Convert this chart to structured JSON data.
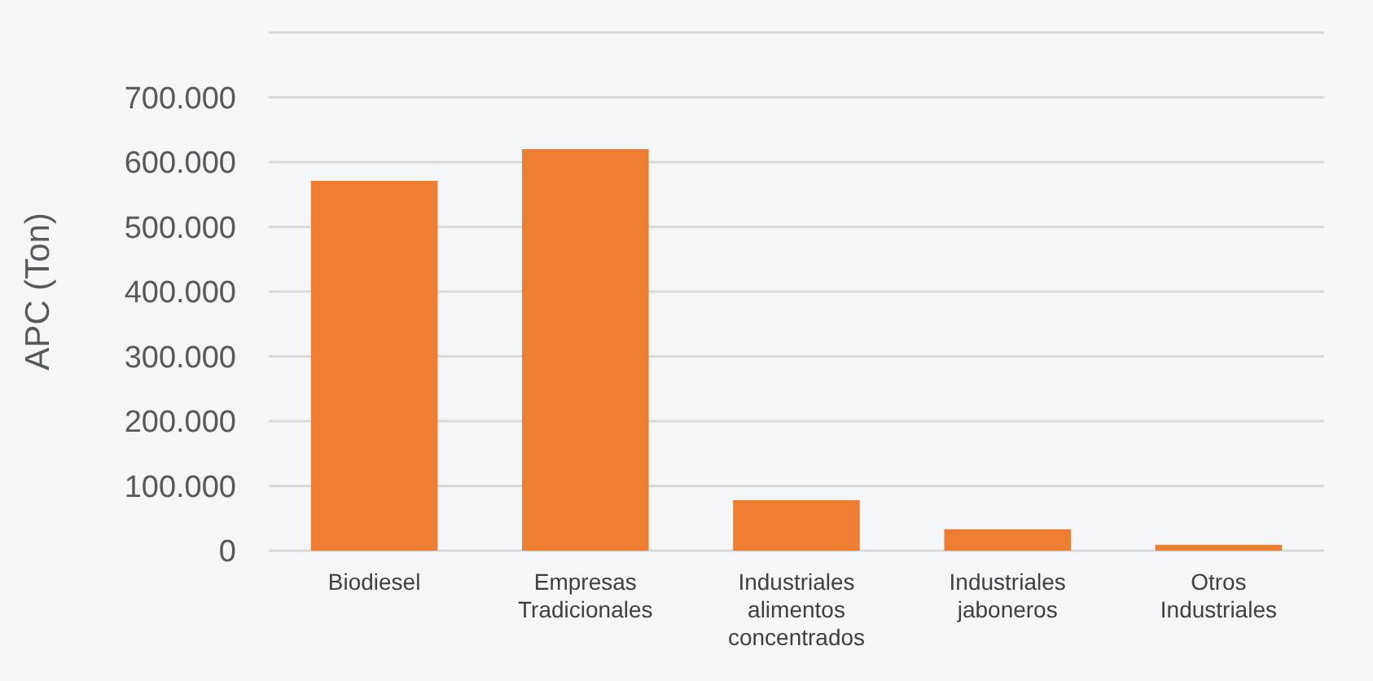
{
  "chart_data": {
    "type": "bar",
    "ylabel": "APC (Ton)",
    "categories": [
      "Biodiesel",
      "Empresas Tradicionales",
      "Industriales alimentos concentrados",
      "Industriales jaboneros",
      "Otros Industriales"
    ],
    "values": [
      571000,
      620000,
      78000,
      33000,
      9000
    ],
    "color": "#ed7d31",
    "ylim": [
      0,
      800000
    ],
    "yticks": [
      {
        "value": 0,
        "label": "0"
      },
      {
        "value": 100000,
        "label": "100.000"
      },
      {
        "value": 200000,
        "label": "200.000"
      },
      {
        "value": 300000,
        "label": "300.000"
      },
      {
        "value": 400000,
        "label": "400.000"
      },
      {
        "value": 500000,
        "label": "500.000"
      },
      {
        "value": 600000,
        "label": "600.000"
      },
      {
        "value": 700000,
        "label": "700.000"
      },
      {
        "value": 800000,
        "label": null
      }
    ],
    "grid": true
  }
}
